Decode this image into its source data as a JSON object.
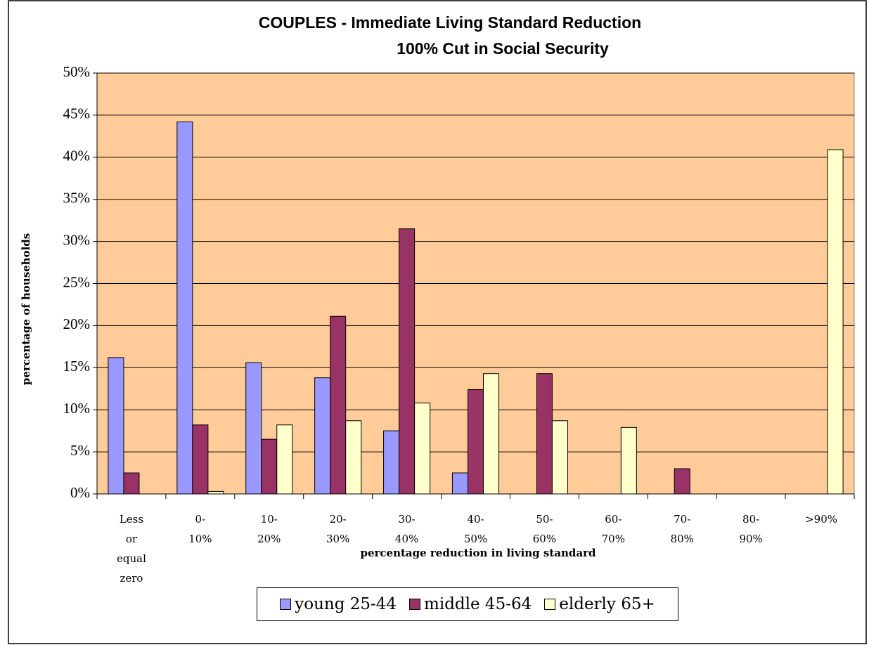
{
  "chart_data": {
    "type": "bar",
    "title": "COUPLES - Immediate Living Standard Reduction",
    "subtitle": "100% Cut in Social Security",
    "y_label": "percentage of households",
    "x_label": "percentage reduction in living standard",
    "categories": [
      "Less or equal zero",
      "0-10%",
      "10-20%",
      "20-30%",
      "30-40%",
      "40-50%",
      "50-60%",
      "60-70%",
      "70-80%",
      "80-90%",
      ">90%"
    ],
    "series": [
      {
        "name": "young 25-44",
        "color": "#9999ff",
        "values": [
          16.2,
          44.2,
          15.6,
          13.8,
          7.5,
          2.5,
          0,
          0,
          0,
          0,
          0
        ]
      },
      {
        "name": "middle 45-64",
        "color": "#993366",
        "values": [
          2.5,
          8.2,
          6.5,
          21.1,
          31.5,
          12.4,
          14.3,
          0,
          3.0,
          0,
          0
        ]
      },
      {
        "name": "elderly 65+",
        "color": "#ffffcc",
        "values": [
          0,
          0.3,
          8.2,
          8.7,
          10.8,
          14.3,
          8.7,
          7.9,
          0,
          0,
          40.9
        ]
      }
    ],
    "ylim": [
      0,
      50
    ],
    "yticks": [
      {
        "value": 0,
        "label": "0%"
      },
      {
        "value": 5,
        "label": "5%"
      },
      {
        "value": 10,
        "label": "10%"
      },
      {
        "value": 15,
        "label": "15%"
      },
      {
        "value": 20,
        "label": "20%"
      },
      {
        "value": 25,
        "label": "25%"
      },
      {
        "value": 30,
        "label": "30%"
      },
      {
        "value": 35,
        "label": "35%"
      },
      {
        "value": 40,
        "label": "40%"
      },
      {
        "value": 45,
        "label": "45%"
      },
      {
        "value": 50,
        "label": "50%"
      }
    ],
    "grid": true,
    "plot_background": "#ffcc99",
    "legend": "bottom"
  }
}
